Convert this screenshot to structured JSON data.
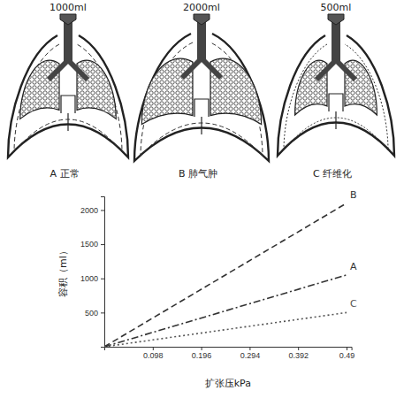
{
  "diagrams": [
    {
      "volume": "1000ml",
      "label": "A 正常"
    },
    {
      "volume": "2000ml",
      "label": "B 肺气肿"
    },
    {
      "volume": "500ml",
      "label": "C 纤维化"
    }
  ],
  "chart_data": {
    "type": "line",
    "x_label": "扩张压kPa",
    "y_label": "容积（ml）",
    "x": [
      0,
      0.49
    ],
    "series": [
      {
        "name": "B",
        "color": "#333333",
        "line_style": "dashed",
        "values": [
          0,
          2100
        ]
      },
      {
        "name": "A",
        "color": "#333333",
        "line_style": "dashdot",
        "values": [
          0,
          1050
        ]
      },
      {
        "name": "C",
        "color": "#555555",
        "line_style": "dotted",
        "values": [
          0,
          500
        ]
      }
    ],
    "xlim": [
      0,
      0.5
    ],
    "xticks": [
      0.098,
      0.196,
      0.294,
      0.392,
      0.49
    ],
    "ylim": [
      0,
      2200
    ],
    "yticks": [
      500,
      1000,
      1500,
      2000
    ],
    "grid": false
  }
}
